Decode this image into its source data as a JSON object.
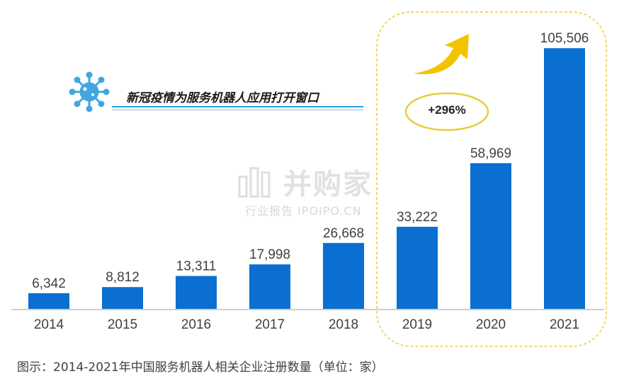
{
  "chart_data": {
    "type": "bar",
    "categories": [
      "2014",
      "2015",
      "2016",
      "2017",
      "2018",
      "2019",
      "2020",
      "2021"
    ],
    "values": [
      6342,
      8812,
      13311,
      17998,
      26668,
      33222,
      58969,
      105506
    ],
    "value_labels": [
      "6,342",
      "8,812",
      "13,311",
      "17,998",
      "26,668",
      "33,222",
      "58,969",
      "105,506"
    ],
    "title": "",
    "xlabel": "",
    "ylabel": "",
    "ylim": [
      0,
      115000
    ],
    "grid": false,
    "highlight_categories": [
      "2019",
      "2020",
      "2021"
    ],
    "bar_color": "#0a6fd1"
  },
  "annotation": {
    "headline": "新冠疫情为服务机器人应用打开窗口",
    "growth": "+296%",
    "icon": "virus-icon",
    "arrow": "up-arrow-icon"
  },
  "watermark": {
    "main": "并购家",
    "sub": "行业报告 IPOIPO.CN"
  },
  "caption": "图示：2014-2021年中国服务机器人相关企业注册数量（单位：家）",
  "colors": {
    "bar": "#0a6fd1",
    "highlight_border": "#e8cc3a",
    "arrow": "#f2c400",
    "icon": "#41a6e0",
    "underline": "#2b9fd8"
  }
}
